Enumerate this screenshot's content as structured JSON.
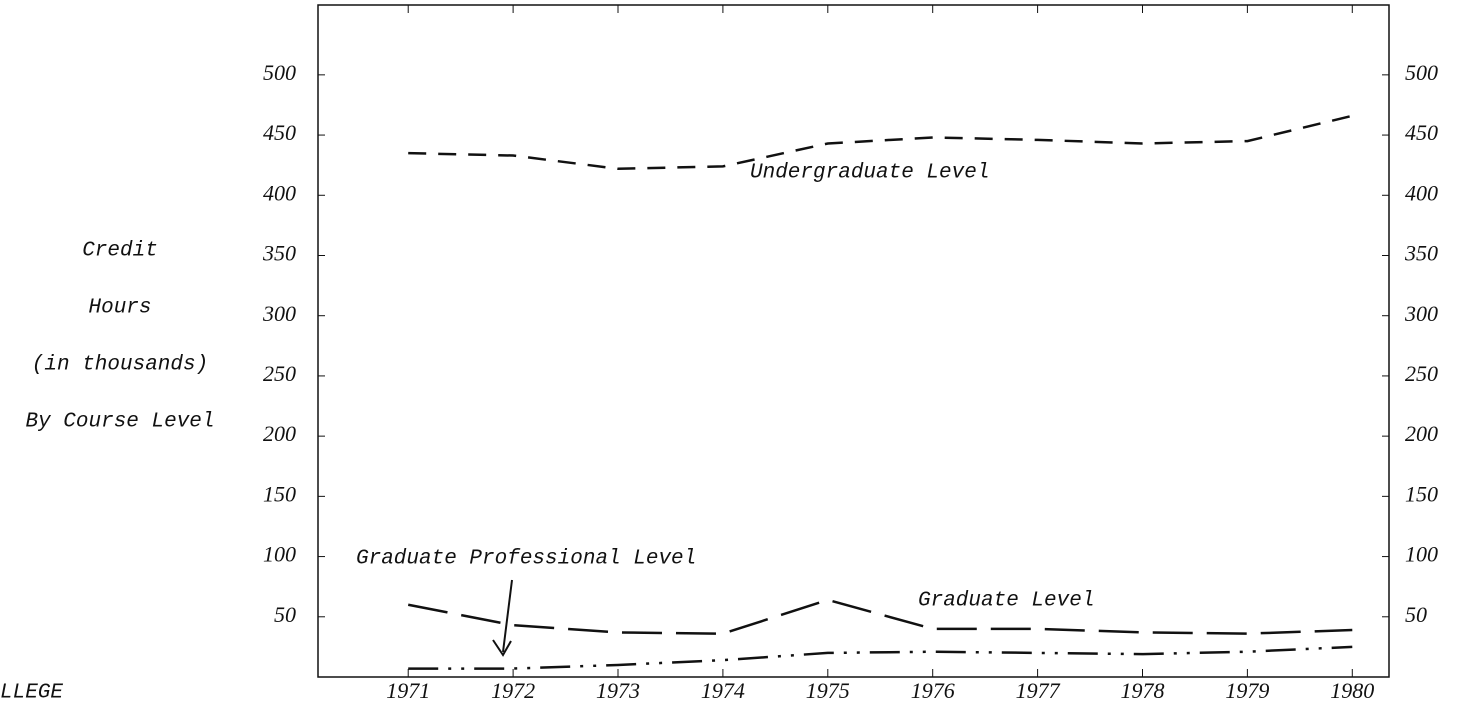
{
  "chart_data": {
    "type": "line",
    "ylabel_lines": [
      "Credit",
      "Hours",
      "(in thousands)",
      "By Course Level"
    ],
    "x": [
      1971,
      1972,
      1973,
      1974,
      1975,
      1976,
      1977,
      1978,
      1979,
      1980
    ],
    "xlim": [
      1970.14,
      1980.35
    ],
    "xticks": [
      1971,
      1972,
      1973,
      1974,
      1975,
      1976,
      1977,
      1978,
      1979,
      1980
    ],
    "ylim": [
      0,
      558
    ],
    "yticks": [
      50,
      100,
      150,
      200,
      250,
      300,
      350,
      400,
      450,
      500
    ],
    "y2lim": [
      0,
      558
    ],
    "y2ticks": [
      50,
      100,
      150,
      200,
      250,
      300,
      350,
      400,
      450,
      500
    ],
    "series": [
      {
        "name": "Undergraduate Level",
        "color": "#111111",
        "dash": "18 12",
        "values": [
          435,
          433,
          422,
          424,
          443,
          448,
          446,
          443,
          445,
          466
        ]
      },
      {
        "name": "Graduate Level",
        "color": "#111111",
        "dash": "40 14",
        "values": [
          60,
          43,
          37,
          36,
          64,
          40,
          40,
          37,
          36,
          39
        ]
      },
      {
        "name": "Graduate Professional Level",
        "color": "#111111",
        "dash": "30 10 3 10 3 10",
        "values": [
          7,
          7,
          10,
          14,
          20,
          21,
          20,
          19,
          21,
          25
        ]
      }
    ],
    "footer_fragment": "LLEGE"
  }
}
